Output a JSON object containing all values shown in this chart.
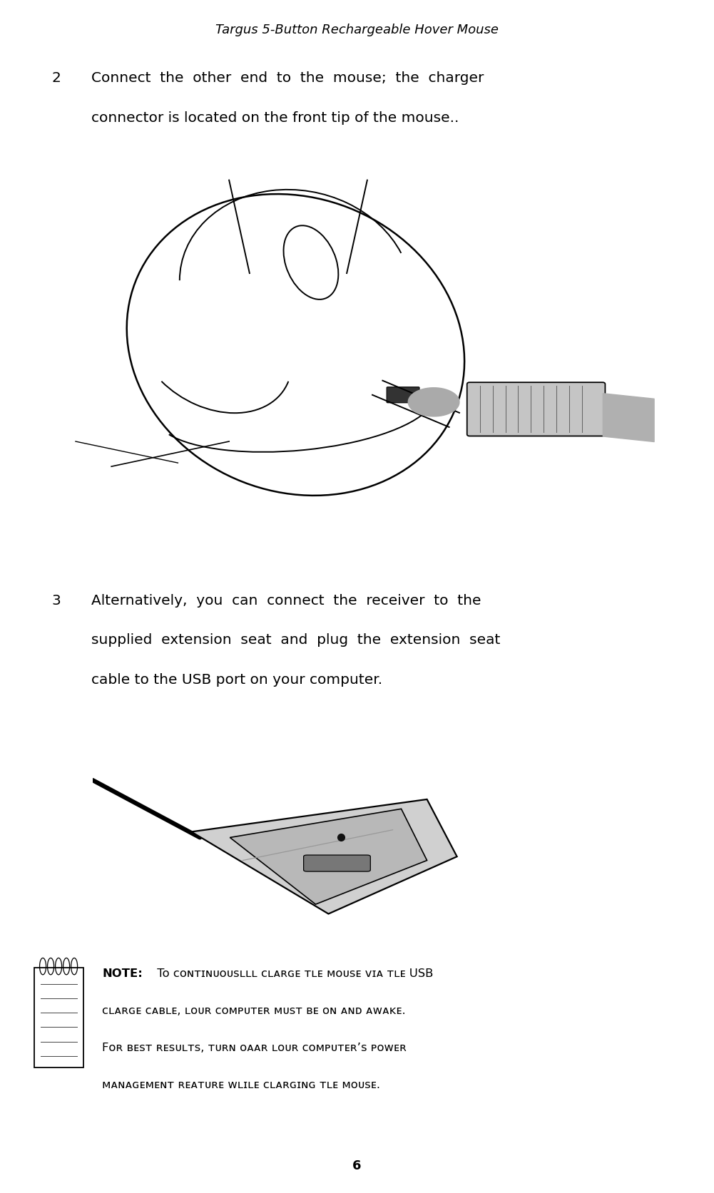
{
  "title": "Targus 5-Button Rechargeable Hover Mouse",
  "bg_color": "#ffffff",
  "text_color": "#000000",
  "page_number": "6",
  "body_fontsize": 14.5,
  "note_fontsize": 11.8,
  "title_fontsize": 13.0,
  "section2_num": "2",
  "section2_line1": "Connect  the  other  end  to  the  mouse;  the  charger",
  "section2_line2": "connector is located on the front tip of the mouse..",
  "section3_num": "3",
  "section3_line1": "Alternatively,  you  can  connect  the  receiver  to  the",
  "section3_line2": "supplied  extension  seat  and  plug  the  extension  seat",
  "section3_line3": "cable to the USB port on your computer.",
  "note_line1a": "NOTE:",
  "note_line1b": " To ᴄᴏɴᴛɪɴᴜᴏᴜѕʟʟʟ ᴄʟᴀʀɢᴇ ᴛʟᴇ ᴍᴏᴜѕᴇ ᴠɪᴀ ᴛʟᴇ USB",
  "note_line2": "ᴄʟᴀʀɢᴇ ᴄᴀʙʟᴇ, ʟᴏᴜʀ ᴄᴏᴍᴘᴜᴛᴇʀ ᴍᴜѕᴛ ʙᴇ ᴏɴ ᴀɴᴅ ᴀᴡᴀᴋᴇ.",
  "note_line3": "Fᴏʀ ʙᴇѕᴛ ʀᴇѕᴜʟᴛѕ, ᴛᴜʀɴ ᴏᴀᴀʀ ʟᴏᴜʀ ᴄᴏᴍᴘᴜᴛᴇʀ’ѕ ᴘᴏᴡᴇʀ",
  "note_line4": "ᴍᴀɴᴀɢᴇᴍᴇɴᴛ ʀᴇᴀᴛᴜʀᴇ ᴡʟɪʟᴇ ᴄʟᴀʀɢɪɴɢ ᴛʟᴇ ᴍᴏᴜѕᴇ."
}
